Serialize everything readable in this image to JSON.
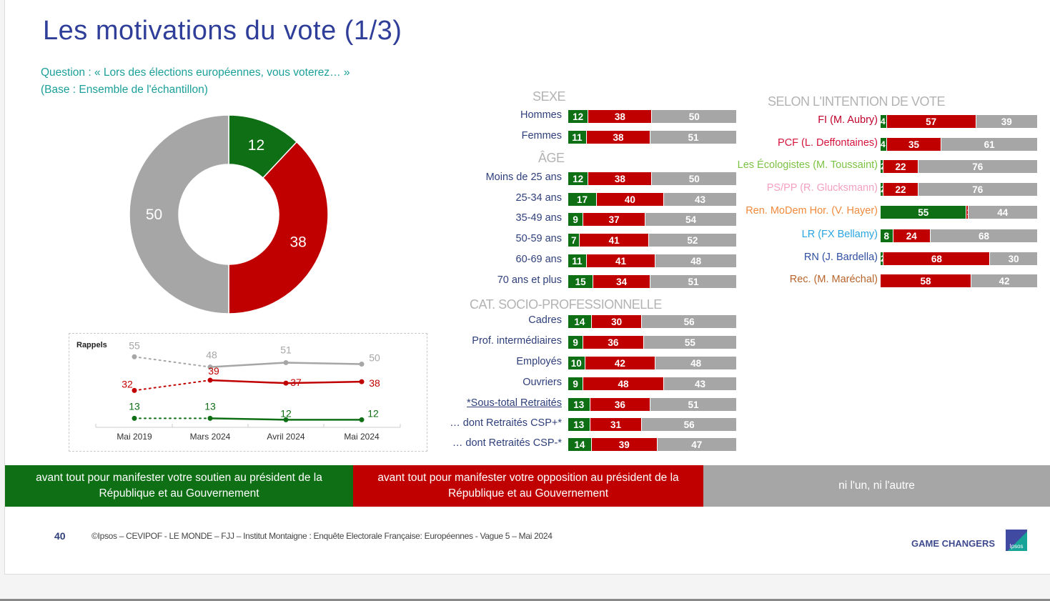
{
  "title": "Les motivations du vote (1/3)",
  "question_line1": "Question : « Lors des élections européennes, vous voterez… »",
  "question_line2": "(Base : Ensemble de l'échantillon)",
  "colors": {
    "soutien": "#0e6f14",
    "opposition": "#c00000",
    "ni": "#a6a6a6",
    "title": "#2f3f99",
    "question": "#1b9f99"
  },
  "chart_data": [
    {
      "type": "pie",
      "title": "Ensemble",
      "slices": [
        {
          "name": "soutien",
          "value": 12,
          "label": "12"
        },
        {
          "name": "opposition",
          "value": 38,
          "label": "38"
        },
        {
          "name": "ni",
          "value": 50,
          "label": "50"
        }
      ]
    },
    {
      "type": "line",
      "title": "Rappels",
      "categories": [
        "Mai 2019",
        "Mars 2024",
        "Avril 2024",
        "Mai 2024"
      ],
      "series": [
        {
          "name": "ni",
          "values": [
            55,
            48,
            51,
            50
          ],
          "labels": [
            "55",
            "48",
            "51",
            "50"
          ]
        },
        {
          "name": "opposition",
          "values": [
            32,
            39,
            37,
            38
          ],
          "labels": [
            "32",
            "39",
            "37",
            "38"
          ]
        },
        {
          "name": "soutien",
          "values": [
            13,
            13,
            12,
            12
          ],
          "labels": [
            "13",
            "13",
            "12",
            "12"
          ]
        }
      ]
    },
    {
      "type": "bar",
      "stacked": true,
      "sections": [
        {
          "title": "SEXE",
          "rows": [
            {
              "label": "Hommes",
              "values": [
                12,
                38,
                50
              ]
            },
            {
              "label": "Femmes",
              "values": [
                11,
                38,
                51
              ]
            }
          ]
        },
        {
          "title": "ÂGE",
          "rows": [
            {
              "label": "Moins de 25 ans",
              "values": [
                12,
                38,
                50
              ]
            },
            {
              "label": "25-34 ans",
              "values": [
                17,
                40,
                43
              ]
            },
            {
              "label": "35-49 ans",
              "values": [
                9,
                37,
                54
              ]
            },
            {
              "label": "50-59 ans",
              "values": [
                7,
                41,
                52
              ]
            },
            {
              "label": "60-69 ans",
              "values": [
                11,
                41,
                48
              ]
            },
            {
              "label": "70 ans et plus",
              "values": [
                15,
                34,
                51
              ]
            }
          ]
        },
        {
          "title": "CAT. SOCIO-PROFESSIONNELLE",
          "rows": [
            {
              "label": "Cadres",
              "values": [
                14,
                30,
                56
              ]
            },
            {
              "label": "Prof. intermédiaires",
              "values": [
                9,
                36,
                55
              ]
            },
            {
              "label": "Employés",
              "values": [
                10,
                42,
                48
              ]
            },
            {
              "label": "Ouvriers",
              "values": [
                9,
                48,
                43
              ]
            },
            {
              "label": "*Sous-total Retraités",
              "values": [
                13,
                36,
                51
              ]
            },
            {
              "label": "… dont Retraités CSP+*",
              "values": [
                13,
                31,
                56
              ]
            },
            {
              "label": "… dont Retraités CSP-*",
              "values": [
                14,
                39,
                47
              ]
            }
          ]
        }
      ]
    },
    {
      "type": "bar",
      "stacked": true,
      "title": "SELON L'INTENTION DE VOTE",
      "rows": [
        {
          "label": "FI (M. Aubry)",
          "color": "#c0002a",
          "values": [
            4,
            57,
            39
          ]
        },
        {
          "label": "PCF (L. Deffontaines)",
          "color": "#d4143c",
          "values": [
            4,
            35,
            61
          ]
        },
        {
          "label": "Les Écologistes (M. Toussaint)",
          "color": "#7cc242",
          "values": [
            2,
            22,
            76
          ]
        },
        {
          "label": "PS/PP (R. Glucksmann)",
          "color": "#f4a0c0",
          "values": [
            2,
            22,
            76
          ]
        },
        {
          "label": "Ren. MoDem Hor. (V. Hayer)",
          "color": "#f08a3c",
          "values": [
            55,
            1,
            44
          ]
        },
        {
          "label": "LR (FX Bellamy)",
          "color": "#2aa5e0",
          "values": [
            8,
            24,
            68
          ]
        },
        {
          "label": "RN (J. Bardella)",
          "color": "#2f4fa0",
          "values": [
            2,
            68,
            30
          ]
        },
        {
          "label": "Rec. (M. Maréchal)",
          "color": "#b8642c",
          "values": [
            0,
            58,
            42
          ]
        }
      ]
    }
  ],
  "rappels_label": "Rappels",
  "legend": {
    "soutien": "avant tout pour manifester votre soutien au président de la République et au Gouvernement",
    "opposition": "avant tout pour manifester votre opposition au président de la République et au Gouvernement",
    "ni": "ni l'un, ni l'autre"
  },
  "footer": {
    "page": "40",
    "source": "©Ipsos – CEVIPOF - LE MONDE – FJJ – Institut Montaigne : Enquête Electorale Française: Européennes - Vague 5 – Mai 2024",
    "tagline": "GAME CHANGERS",
    "logo": "Ipsos"
  }
}
